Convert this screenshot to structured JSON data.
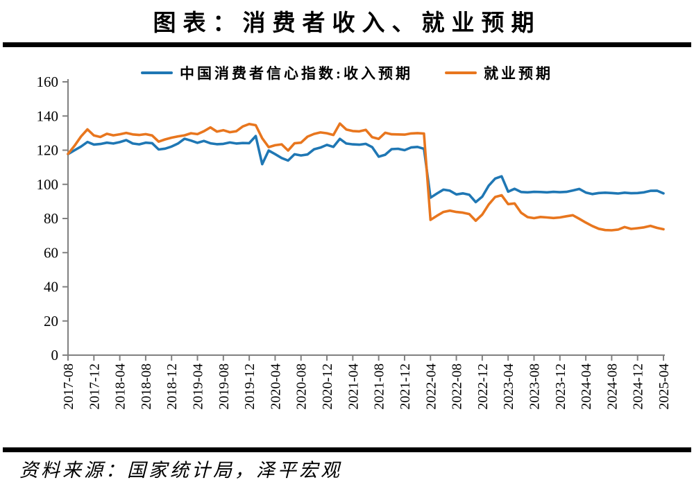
{
  "title": "图表：消费者收入、就业预期",
  "source": "资料来源：国家统计局，泽平宏观",
  "colors": {
    "income": "#1f77b4",
    "employment": "#e8761e",
    "axis": "#808080",
    "text": "#000000",
    "rule": "#000000"
  },
  "chart_data": {
    "type": "line",
    "title": "图表：消费者收入、就业预期",
    "xlabel": "",
    "ylabel": "",
    "ylim": [
      0,
      160
    ],
    "y_ticks": [
      0,
      20,
      40,
      60,
      80,
      100,
      120,
      140,
      160
    ],
    "grid": false,
    "legend_position": "top-center",
    "x_is_monthly": true,
    "x_start": "2017-08",
    "x_end": "2025-04",
    "x_tick_every_n_months": 4,
    "x_tick_labels": [
      "2017-08",
      "2017-12",
      "2018-04",
      "2018-08",
      "2018-12",
      "2019-04",
      "2019-08",
      "2019-12",
      "2020-04",
      "2020-08",
      "2020-12",
      "2021-04",
      "2021-08",
      "2021-12",
      "2022-04",
      "2022-08",
      "2022-12",
      "2023-04",
      "2023-08",
      "2023-12",
      "2024-04",
      "2024-08",
      "2024-12",
      "2025-04"
    ],
    "series": [
      {
        "name": "中国消费者信心指数:收入预期",
        "color_key": "income",
        "values": [
          117.7,
          119.9,
          122.1,
          124.8,
          123.3,
          123.6,
          124.4,
          123.9,
          124.7,
          125.9,
          123.9,
          123.4,
          124.4,
          124.1,
          120.4,
          120.9,
          122.1,
          123.9,
          126.7,
          125.6,
          124.3,
          125.4,
          124.0,
          123.5,
          123.7,
          124.5,
          123.9,
          124.2,
          124.1,
          128.3,
          111.8,
          119.8,
          117.7,
          115.4,
          113.9,
          117.6,
          116.9,
          117.5,
          120.5,
          121.5,
          123.1,
          121.9,
          126.6,
          123.9,
          123.4,
          123.2,
          123.7,
          121.8,
          116.2,
          117.3,
          120.6,
          120.8,
          120.0,
          121.6,
          121.9,
          120.8,
          92.2,
          94.6,
          96.9,
          96.3,
          94.1,
          94.7,
          93.9,
          89.6,
          92.8,
          99.2,
          103.4,
          104.7,
          95.7,
          97.4,
          95.5,
          95.3,
          95.6,
          95.5,
          95.3,
          95.6,
          95.4,
          95.6,
          96.4,
          97.3,
          95.2,
          94.3,
          94.9,
          95.1,
          94.9,
          94.6,
          95.1,
          94.8,
          94.9,
          95.3,
          96.2,
          96.3,
          94.7
        ]
      },
      {
        "name": "就业预期",
        "color_key": "employment",
        "values": [
          117.8,
          122.5,
          128.0,
          132.2,
          128.6,
          127.7,
          129.6,
          128.7,
          129.3,
          130.1,
          129.2,
          128.9,
          129.4,
          128.6,
          125.0,
          126.3,
          127.3,
          128.1,
          128.7,
          129.9,
          129.4,
          131.1,
          133.3,
          130.9,
          131.7,
          130.5,
          131.1,
          133.9,
          135.3,
          134.6,
          127.0,
          121.8,
          122.9,
          123.4,
          119.8,
          124.0,
          124.4,
          127.9,
          129.5,
          130.4,
          129.9,
          128.9,
          135.6,
          132.1,
          131.2,
          131.0,
          131.9,
          127.6,
          126.6,
          130.2,
          129.3,
          129.2,
          129.1,
          129.8,
          130.0,
          129.7,
          79.2,
          81.6,
          83.8,
          84.6,
          83.8,
          83.4,
          82.6,
          78.7,
          82.3,
          88.2,
          92.6,
          93.6,
          88.4,
          88.8,
          83.4,
          80.8,
          80.2,
          80.9,
          80.6,
          80.3,
          80.6,
          81.3,
          81.9,
          79.8,
          77.6,
          75.6,
          74.0,
          73.2,
          73.1,
          73.5,
          75.0,
          73.9,
          74.3,
          74.8,
          75.7,
          74.5,
          73.7
        ]
      }
    ]
  }
}
